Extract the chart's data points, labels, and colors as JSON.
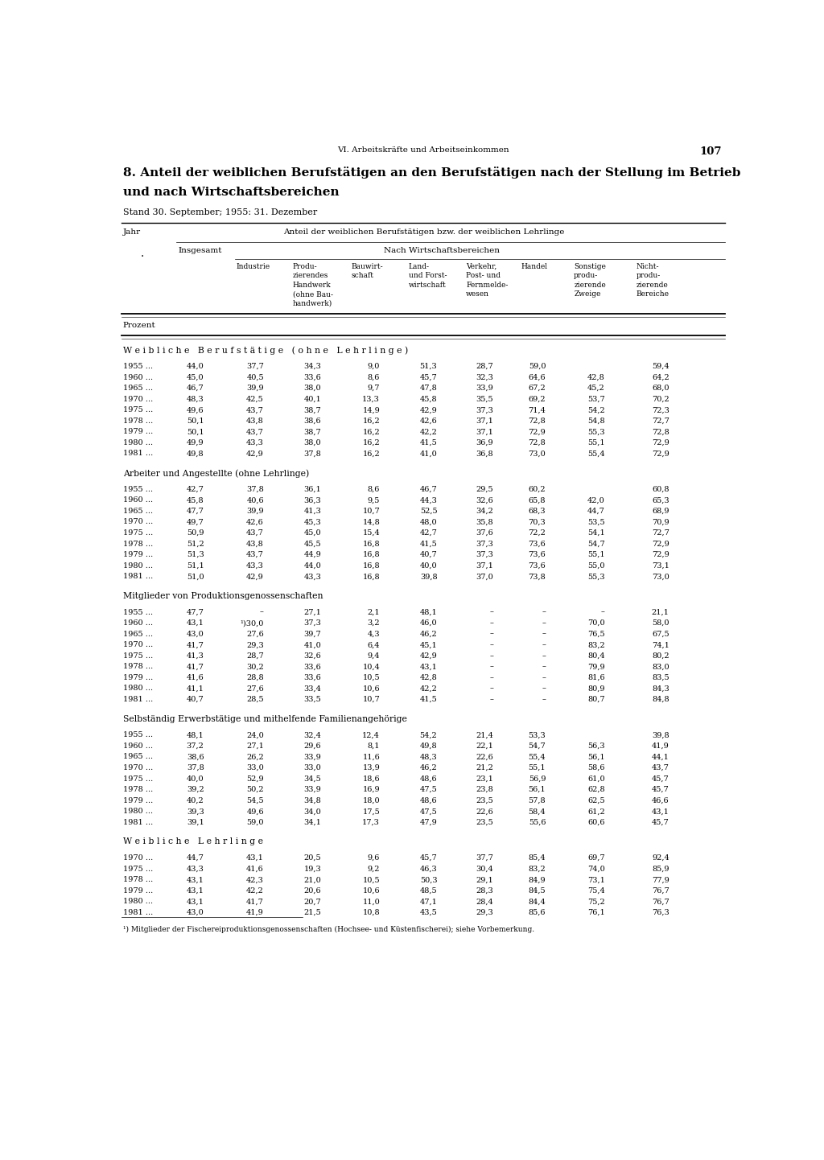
{
  "page_header": "VI. Arbeitskräfte und Arbeitseinkommen",
  "page_number": "107",
  "title_line1": "8. Anteil der weiblichen Berufstätigen an den Berufstätigen nach der Stellung im Betrieb",
  "title_line2": "und nach Wirtschaftsbereichen",
  "subtitle": "Stand 30. September; 1955: 31. Dezember",
  "col_header_main": "Anteil der weiblichen Berufstätigen bzw. der weiblichen Lehrlinge",
  "col_header_prozent": "Prozent",
  "section1_title": "W e i b l i c h e   B e r u f s t ä t i g e   ( o h n e   L e h r l i n g e )",
  "section1_data": [
    [
      "1955",
      "44,0",
      "37,7",
      "34,3",
      "9,0",
      "51,3",
      "28,7",
      "59,0",
      "",
      "59,4"
    ],
    [
      "1960",
      "45,0",
      "40,5",
      "33,6",
      "8,6",
      "45,7",
      "32,3",
      "64,6",
      "42,8",
      "64,2"
    ],
    [
      "1965",
      "46,7",
      "39,9",
      "38,0",
      "9,7",
      "47,8",
      "33,9",
      "67,2",
      "45,2",
      "68,0"
    ],
    [
      "1970",
      "48,3",
      "42,5",
      "40,1",
      "13,3",
      "45,8",
      "35,5",
      "69,2",
      "53,7",
      "70,2"
    ],
    [
      "1975",
      "49,6",
      "43,7",
      "38,7",
      "14,9",
      "42,9",
      "37,3",
      "71,4",
      "54,2",
      "72,3"
    ],
    [
      "1978",
      "50,1",
      "43,8",
      "38,6",
      "16,2",
      "42,6",
      "37,1",
      "72,8",
      "54,8",
      "72,7"
    ],
    [
      "1979",
      "50,1",
      "43,7",
      "38,7",
      "16,2",
      "42,2",
      "37,1",
      "72,9",
      "55,3",
      "72,8"
    ],
    [
      "1980",
      "49,9",
      "43,3",
      "38,0",
      "16,2",
      "41,5",
      "36,9",
      "72,8",
      "55,1",
      "72,9"
    ],
    [
      "1981",
      "49,8",
      "42,9",
      "37,8",
      "16,2",
      "41,0",
      "36,8",
      "73,0",
      "55,4",
      "72,9"
    ]
  ],
  "section2_title": "Arbeiter und Angestellte (ohne Lehrlinge)",
  "section2_data": [
    [
      "1955",
      "42,7",
      "37,8",
      "36,1",
      "8,6",
      "46,7",
      "29,5",
      "60,2",
      "",
      "60,8"
    ],
    [
      "1960",
      "45,8",
      "40,6",
      "36,3",
      "9,5",
      "44,3",
      "32,6",
      "65,8",
      "42,0",
      "65,3"
    ],
    [
      "1965",
      "47,7",
      "39,9",
      "41,3",
      "10,7",
      "52,5",
      "34,2",
      "68,3",
      "44,7",
      "68,9"
    ],
    [
      "1970",
      "49,7",
      "42,6",
      "45,3",
      "14,8",
      "48,0",
      "35,8",
      "70,3",
      "53,5",
      "70,9"
    ],
    [
      "1975",
      "50,9",
      "43,7",
      "45,0",
      "15,4",
      "42,7",
      "37,6",
      "72,2",
      "54,1",
      "72,7"
    ],
    [
      "1978",
      "51,2",
      "43,8",
      "45,5",
      "16,8",
      "41,5",
      "37,3",
      "73,6",
      "54,7",
      "72,9"
    ],
    [
      "1979",
      "51,3",
      "43,7",
      "44,9",
      "16,8",
      "40,7",
      "37,3",
      "73,6",
      "55,1",
      "72,9"
    ],
    [
      "1980",
      "51,1",
      "43,3",
      "44,0",
      "16,8",
      "40,0",
      "37,1",
      "73,6",
      "55,0",
      "73,1"
    ],
    [
      "1981",
      "51,0",
      "42,9",
      "43,3",
      "16,8",
      "39,8",
      "37,0",
      "73,8",
      "55,3",
      "73,0"
    ]
  ],
  "section3_title": "Mitglieder von Produktionsgenossenschaften",
  "section3_data": [
    [
      "1955",
      "47,7",
      "–",
      "27,1",
      "2,1",
      "48,1",
      "–",
      "–",
      "–",
      "21,1"
    ],
    [
      "1960",
      "43,1",
      "¹)30,0",
      "37,3",
      "3,2",
      "46,0",
      "–",
      "–",
      "70,0",
      "58,0"
    ],
    [
      "1965",
      "43,0",
      "27,6",
      "39,7",
      "4,3",
      "46,2",
      "–",
      "–",
      "76,5",
      "67,5"
    ],
    [
      "1970",
      "41,7",
      "29,3",
      "41,0",
      "6,4",
      "45,1",
      "–",
      "–",
      "83,2",
      "74,1"
    ],
    [
      "1975",
      "41,3",
      "28,7",
      "32,6",
      "9,4",
      "42,9",
      "–",
      "–",
      "80,4",
      "80,2"
    ],
    [
      "1978",
      "41,7",
      "30,2",
      "33,6",
      "10,4",
      "43,1",
      "–",
      "–",
      "79,9",
      "83,0"
    ],
    [
      "1979",
      "41,6",
      "28,8",
      "33,6",
      "10,5",
      "42,8",
      "–",
      "–",
      "81,6",
      "83,5"
    ],
    [
      "1980",
      "41,1",
      "27,6",
      "33,4",
      "10,6",
      "42,2",
      "–",
      "–",
      "80,9",
      "84,3"
    ],
    [
      "1981",
      "40,7",
      "28,5",
      "33,5",
      "10,7",
      "41,5",
      "–",
      "–",
      "80,7",
      "84,8"
    ]
  ],
  "section4_title": "Selbständig Erwerbstätige und mithelfende Familienangehörige",
  "section4_data": [
    [
      "1955",
      "48,1",
      "24,0",
      "32,4",
      "12,4",
      "54,2",
      "21,4",
      "53,3",
      "",
      "39,8"
    ],
    [
      "1960",
      "37,2",
      "27,1",
      "29,6",
      "8,1",
      "49,8",
      "22,1",
      "54,7",
      "56,3",
      "41,9"
    ],
    [
      "1965",
      "38,6",
      "26,2",
      "33,9",
      "11,6",
      "48,3",
      "22,6",
      "55,4",
      "56,1",
      "44,1"
    ],
    [
      "1970",
      "37,8",
      "33,0",
      "33,0",
      "13,9",
      "46,2",
      "21,2",
      "55,1",
      "58,6",
      "43,7"
    ],
    [
      "1975",
      "40,0",
      "52,9",
      "34,5",
      "18,6",
      "48,6",
      "23,1",
      "56,9",
      "61,0",
      "45,7"
    ],
    [
      "1978",
      "39,2",
      "50,2",
      "33,9",
      "16,9",
      "47,5",
      "23,8",
      "56,1",
      "62,8",
      "45,7"
    ],
    [
      "1979",
      "40,2",
      "54,5",
      "34,8",
      "18,0",
      "48,6",
      "23,5",
      "57,8",
      "62,5",
      "46,6"
    ],
    [
      "1980",
      "39,3",
      "49,6",
      "34,0",
      "17,5",
      "47,5",
      "22,6",
      "58,4",
      "61,2",
      "43,1"
    ],
    [
      "1981",
      "39,1",
      "59,0",
      "34,1",
      "17,3",
      "47,9",
      "23,5",
      "55,6",
      "60,6",
      "45,7"
    ]
  ],
  "section5_title": "W e i b l i c h e   L e h r l i n g e",
  "section5_data": [
    [
      "1970",
      "44,7",
      "43,1",
      "20,5",
      "9,6",
      "45,7",
      "37,7",
      "85,4",
      "69,7",
      "92,4"
    ],
    [
      "1975",
      "43,3",
      "41,6",
      "19,3",
      "9,2",
      "46,3",
      "30,4",
      "83,2",
      "74,0",
      "85,9"
    ],
    [
      "1978",
      "43,1",
      "42,3",
      "21,0",
      "10,5",
      "50,3",
      "29,1",
      "84,9",
      "73,1",
      "77,9"
    ],
    [
      "1979",
      "43,1",
      "42,2",
      "20,6",
      "10,6",
      "48,5",
      "28,3",
      "84,5",
      "75,4",
      "76,7"
    ],
    [
      "1980",
      "43,1",
      "41,7",
      "20,7",
      "11,0",
      "47,1",
      "28,4",
      "84,4",
      "75,2",
      "76,7"
    ],
    [
      "1981",
      "43,0",
      "41,9",
      "21,5",
      "10,8",
      "43,5",
      "29,3",
      "85,6",
      "76,1",
      "76,3"
    ]
  ],
  "footnote": "¹) Mitglieder der Fischereiproduktionsgenossenschaften (Hochsee- und Küstenfischerei); siehe Vorbemerkung."
}
